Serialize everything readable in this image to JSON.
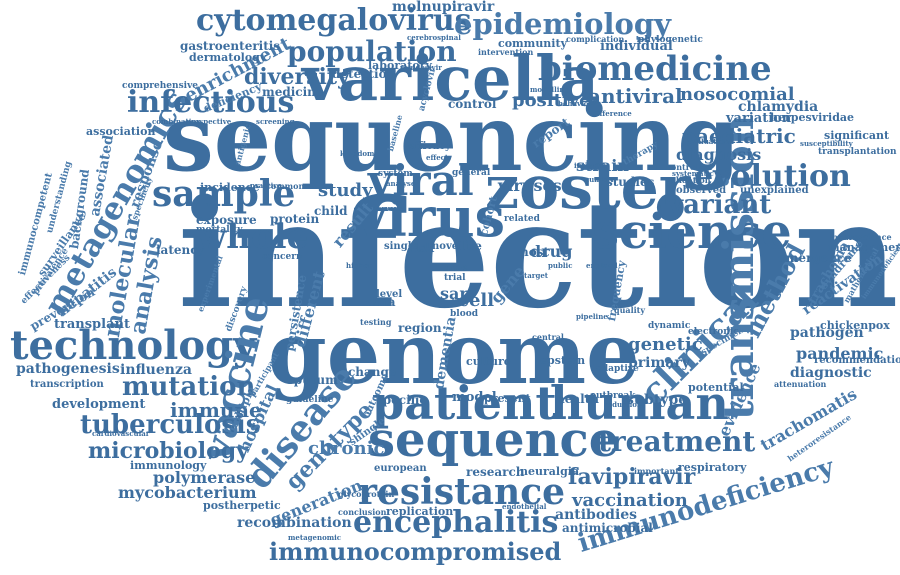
{
  "color": "#4a7bab",
  "words": {
    "infection": "infection",
    "sequencing": "sequencing",
    "genome": "genome",
    "varicella": "varicella",
    "zoster": "zoster",
    "virus": "virus",
    "viral": "viral",
    "sequence": "sequence",
    "patient": "patient",
    "human": "human",
    "science": "science",
    "transmission": "transmission",
    "technology": "technology",
    "metagenomics": "metagenomics",
    "vaccine": "vaccine",
    "disease": "disease",
    "resistance": "resistance",
    "clinical": "clinical",
    "biomedicine": "biomedicine",
    "cytomegalovirus": "cytomegalovirus",
    "epidemiology": "epidemiology",
    "population": "population",
    "infectious": "infectious",
    "sample": "sample",
    "whole": "whole",
    "evolution": "evolution",
    "variant": "variant",
    "treatment": "treatment",
    "encephalitis": "encephalitis",
    "immunocompromised": "immunocompromised",
    "immunodeficiency": "immunodeficiency",
    "tuberculosis": "tuberculosis",
    "mutation": "mutation",
    "microbiology": "microbiology",
    "molecular": "molecular",
    "analysis": "analysis",
    "genotype": "genotype",
    "favipiravir": "favipiravir",
    "vaccination": "vaccination",
    "mycobacterium": "mycobacterium",
    "polymerase": "polymerase",
    "immune": "immune",
    "diversity": "diversity",
    "enrichment": "enrichment",
    "antiviral": "antiviral",
    "positive": "positive",
    "nosocomial": "nosocomial",
    "paediatric": "paediatric",
    "diagnosis": "diagnosis",
    "method": "method",
    "genetic": "genetic",
    "evidence": "evidence",
    "trachomatis": "trachomatis",
    "hospital": "hospital",
    "chronic": "chronic",
    "generation": "generation",
    "recombination": "recombination",
    "influenza": "influenza",
    "pathogenesis": "pathogenesis",
    "hepatitis": "hepatitis",
    "prevention": "prevention",
    "transplant": "transplant",
    "development": "development",
    "study": "study",
    "result": "result",
    "strain": "strain",
    "studies": "studies",
    "viruses": "viruses",
    "drug": "drug",
    "host": "host",
    "cell": "cell",
    "sar": "sar",
    "gene": "gene",
    "primary": "primary",
    "subtype": "subtype",
    "pandemic": "pandemic",
    "diagnostic": "diagnostic",
    "pathogen": "pathogen",
    "reactivation": "reactivation",
    "chickenpox": "chickenpox",
    "emergence": "emergence",
    "management": "management",
    "recommendation": "recommendation",
    "chlamydia": "chlamydia",
    "variation": "variation",
    "herpesviridae": "herpesviridae",
    "antibodies": "antibodies",
    "antimicrobial": "antimicrobial",
    "replication": "replication",
    "immunology": "immunology",
    "postherpetic": "postherpetic",
    "molnupiravir": "molnupiravir",
    "individual": "individual",
    "community": "community",
    "dermatology": "dermatology",
    "gastroenteritis": "gastroenteritis",
    "deficiency": "deficiency",
    "detection": "detection",
    "laboratory": "laboratory",
    "medicine": "medicine",
    "control": "control",
    "comprehensive": "comprehensive",
    "association": "association",
    "associated": "associated",
    "response": "response",
    "background": "background",
    "surveillance": "surveillance",
    "immunocompetent": "immunocompetent",
    "latency": "latency",
    "exposure": "exposure",
    "protein": "protein",
    "incidence": "incidence",
    "child": "child",
    "mortality": "mortality",
    "persistence": "persistence",
    "different": "different",
    "multiple": "multiple",
    "sputum": "sputum",
    "guideline": "guideline",
    "specific": "specific",
    "model": "model",
    "present": "present",
    "health": "health",
    "dementia": "dementia",
    "change": "change",
    "outcome": "outcome",
    "shingle": "shingle",
    "research": "research",
    "neuralgia": "neuralgia",
    "european": "european",
    "culture": "culture",
    "epstein": "epstein",
    "region": "region",
    "frequency": "frequency",
    "adaptive": "adaptive",
    "outbreak": "outbreak",
    "potential": "potential",
    "respiratory": "respiratory",
    "significant": "significant",
    "syndrome": "syndrome",
    "trachoma": "trachoma",
    "report": "report",
    "transcription": "transcription",
    "acyclovir": "acyclovir",
    "phylogenetic": "phylogenetic",
    "complication": "complication",
    "intervention": "intervention",
    "observed": "observed",
    "unexplained": "unexplained",
    "validation": "validation",
    "neuroscience": "neuroscience",
    "attenuation": "attenuation",
    "susceptibility": "susceptibility",
    "transplantation": "transplantation",
    "effectiveness": "effectiveness",
    "prevalence": "prevalence",
    "understanding": "understanding",
    "concern": "concern",
    "data": "data",
    "level": "level",
    "risk": "risk",
    "novel": "novel",
    "life": "life",
    "single": "single",
    "time": "time",
    "trial": "trial",
    "blood": "blood",
    "cohort": "cohort",
    "related": "related",
    "testing": "testing",
    "metagenomic": "metagenomic",
    "conclusion": "conclusion",
    "glycoprotein": "glycoprotein",
    "baseline": "baseline",
    "efficacy": "efficacy",
    "system": "system",
    "general": "general",
    "common": "common",
    "specificity": "specificity",
    "antigenic": "antigenic",
    "experimental": "experimental",
    "discovery": "discovery",
    "participant": "participant",
    "important": "important",
    "heteroresistance": "heteroresistance",
    "cardiovascular": "cardiovascular",
    "endothelial": "endothelial",
    "reduction": "reduction",
    "dynamic": "dynamic",
    "electronic": "electronic",
    "specimen": "specimen",
    "quality": "quality",
    "central": "central",
    "pipeline": "pipeline",
    "mathematical": "mathematical",
    "immunodeficient": "immunodeficient",
    "controlled": "controlled",
    "therapy": "therapy",
    "evaluation": "evaluation",
    "internal": "internal",
    "systematic": "systematic",
    "remdesivir": "remdesivir",
    "cerebrospinal": "cerebrospinal",
    "combination": "combination",
    "prospective": "prospective",
    "screening": "screening",
    "kingdom": "kingdom",
    "behaviour": "behaviour",
    "modelling": "modelling",
    "difference": "difference",
    "number": "number",
    "practice": "practice",
    "analyse": "analyse",
    "nervous": "nervous",
    "higher": "higher",
    "effect": "effect",
    "england": "england",
    "target": "target",
    "public": "public",
    "care": "care"
  }
}
